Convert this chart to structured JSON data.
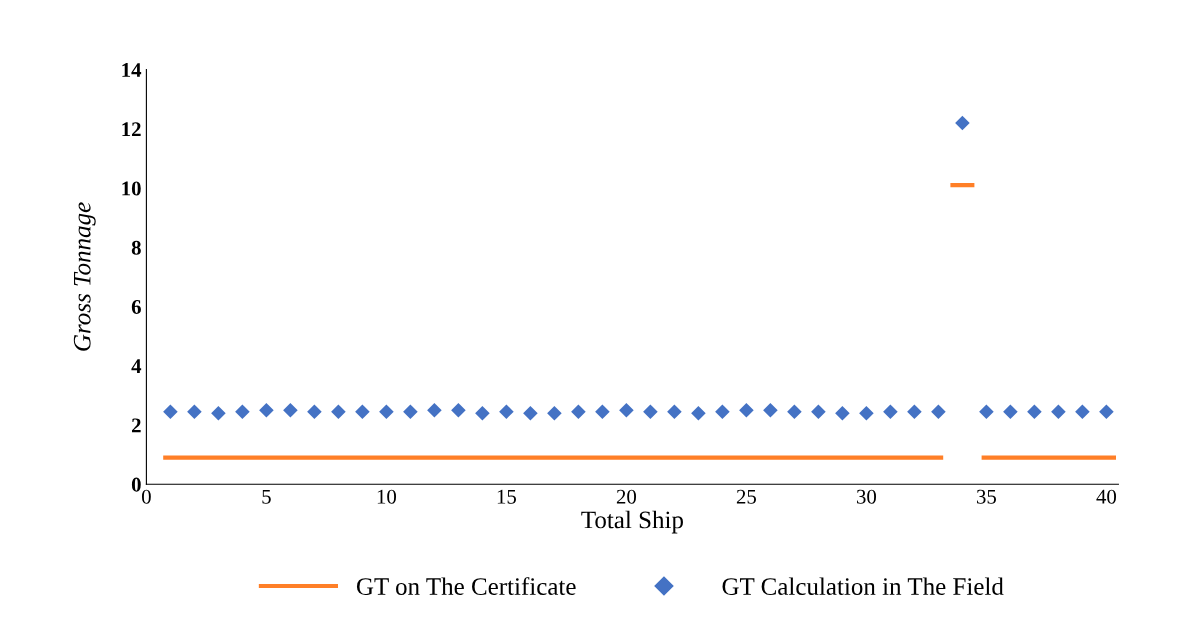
{
  "chart_data": {
    "type": "scatter",
    "xlabel": "Total Ship",
    "ylabel": "Gross Tonnage",
    "x": [
      1,
      2,
      3,
      4,
      5,
      6,
      7,
      8,
      9,
      10,
      11,
      12,
      13,
      14,
      15,
      16,
      17,
      18,
      19,
      20,
      21,
      22,
      23,
      24,
      25,
      26,
      27,
      28,
      29,
      30,
      31,
      32,
      33,
      34,
      35,
      36,
      37,
      38,
      39,
      40
    ],
    "series": [
      {
        "name": "GT on The Certificate",
        "type": "line",
        "color": "#ff7f27",
        "x": [
          0.7,
          33.2,
          33.3,
          33.5,
          34.5,
          34.7,
          34.8,
          40.4
        ],
        "values": [
          0.9,
          0.9,
          null,
          10.1,
          10.1,
          null,
          0.9,
          0.9
        ]
      },
      {
        "name": "GT Calculation in The Field",
        "type": "scatter",
        "marker": "diamond",
        "color": "#4472c4",
        "values": [
          2.45,
          2.45,
          2.4,
          2.45,
          2.5,
          2.5,
          2.45,
          2.45,
          2.45,
          2.45,
          2.45,
          2.5,
          2.5,
          2.4,
          2.45,
          2.4,
          2.4,
          2.45,
          2.45,
          2.5,
          2.45,
          2.45,
          2.4,
          2.45,
          2.5,
          2.5,
          2.45,
          2.45,
          2.4,
          2.4,
          2.45,
          2.45,
          2.45,
          12.2,
          2.45,
          2.45,
          2.45,
          2.45,
          2.45,
          2.45
        ]
      }
    ],
    "xlim": [
      0,
      40.5
    ],
    "xticks": [
      0,
      5,
      10,
      15,
      20,
      25,
      30,
      35,
      40
    ],
    "ylim": [
      0,
      14
    ],
    "yticks": [
      0,
      2,
      4,
      6,
      8,
      10,
      12,
      14
    ],
    "grid": false,
    "legend": "bottom"
  }
}
